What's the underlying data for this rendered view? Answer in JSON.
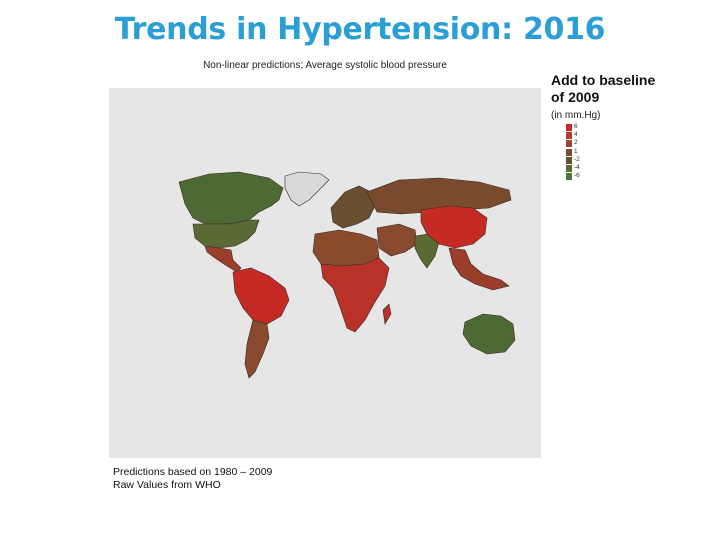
{
  "title": "Trends in Hypertension: 2016",
  "subtitle": "Non-linear predictions; Average systolic blood pressure",
  "legend": {
    "title_line1": "Add to baseline",
    "title_line2": "of 2009",
    "unit": "(in mm.Hg)",
    "items": [
      {
        "label": "6",
        "color": "#c62a25"
      },
      {
        "label": "4",
        "color": "#b93a2a"
      },
      {
        "label": "2",
        "color": "#a2432e"
      },
      {
        "label": "1",
        "color": "#7e4a30"
      },
      {
        "label": "-2",
        "color": "#6a4e30"
      },
      {
        "label": "-4",
        "color": "#5a6a35"
      },
      {
        "label": "-6",
        "color": "#4a7a3a"
      }
    ]
  },
  "footnote": {
    "line1": "Predictions based on 1980 – 2009",
    "line2": "Raw Values from WHO"
  },
  "map": {
    "background": "#e6e6e6",
    "regions": [
      {
        "name": "canada",
        "color": "#4e6a34"
      },
      {
        "name": "greenland",
        "color": "#d9d9d9"
      },
      {
        "name": "usa",
        "color": "#5a6a35"
      },
      {
        "name": "mexico-central-america",
        "color": "#9a3d2b"
      },
      {
        "name": "south-america-north",
        "color": "#c62a25"
      },
      {
        "name": "south-america-south",
        "color": "#8a4a30"
      },
      {
        "name": "europe",
        "color": "#6a4e30"
      },
      {
        "name": "russia",
        "color": "#7a4a2e"
      },
      {
        "name": "north-africa",
        "color": "#8a4a2c"
      },
      {
        "name": "sub-saharan-africa",
        "color": "#b8322a"
      },
      {
        "name": "middle-east",
        "color": "#8a4a30"
      },
      {
        "name": "india",
        "color": "#5a6a35"
      },
      {
        "name": "china",
        "color": "#c62a25"
      },
      {
        "name": "southeast-asia",
        "color": "#9a3d2b"
      },
      {
        "name": "australia",
        "color": "#4e6a34"
      }
    ]
  }
}
